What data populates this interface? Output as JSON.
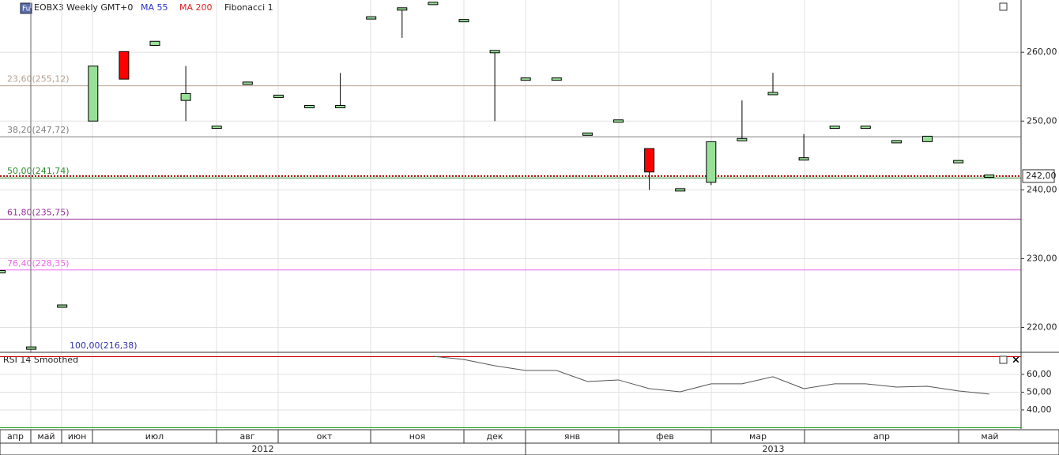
{
  "chart_data": {
    "type": "candlestick",
    "title": "EOBX3 Weekly GMT+0",
    "badge": "Fu",
    "indicators": [
      "MA 55",
      "MA 200",
      "Fibonacci 1"
    ],
    "open": [
      228.1,
      217,
      223.1,
      250,
      260.1,
      261,
      253,
      249.1,
      255.5,
      253.6,
      252.1,
      252.1,
      265,
      266.3,
      267.1,
      264.6,
      260.1,
      256.1,
      256.1,
      248.1,
      250,
      246,
      240,
      241.1,
      247.3,
      254,
      244.5,
      249.1,
      249.1,
      247,
      247,
      244.1,
      242
    ],
    "high": [
      228.1,
      217,
      223.1,
      258,
      260.1,
      261.6,
      258,
      249.1,
      255.5,
      253.6,
      252.1,
      257,
      265,
      266.3,
      267.1,
      264.6,
      260.1,
      256.1,
      256.1,
      248.1,
      250,
      246,
      240,
      247,
      253,
      257,
      248.1,
      249.1,
      249.1,
      247,
      247.8,
      244.1,
      242
    ],
    "low": [
      228.1,
      217,
      223.1,
      250,
      256.1,
      261,
      250,
      249.1,
      255.5,
      253.6,
      252.1,
      252.1,
      265,
      262.1,
      267.1,
      264.6,
      250,
      256.1,
      256.1,
      248.1,
      250,
      240,
      240,
      240.7,
      247.3,
      254,
      244.5,
      249.1,
      249.1,
      247,
      247,
      244.1,
      242
    ],
    "close": [
      228.1,
      217,
      223.1,
      258,
      256.1,
      261.6,
      254,
      249.1,
      255.5,
      253.6,
      252.1,
      252.1,
      265,
      266.3,
      267.1,
      264.6,
      260.1,
      256.1,
      256.1,
      248.1,
      250,
      242.6,
      240,
      247,
      247.3,
      254,
      244.5,
      249.1,
      249.1,
      247,
      247.8,
      244.1,
      242
    ],
    "up_color": "#98e098",
    "down_color": "#ff0000",
    "ylim": [
      216.5,
      267.6
    ],
    "yticks": [
      {
        "value": 220,
        "label": "220,00"
      },
      {
        "value": 230,
        "label": "230,00"
      },
      {
        "value": 240,
        "label": "240,00"
      },
      {
        "value": 250,
        "label": "250,00"
      },
      {
        "value": 260,
        "label": "260,00"
      }
    ],
    "last_price": {
      "value": 242,
      "label": "242,00"
    },
    "fib_levels": [
      {
        "label": "23,60(255,12)",
        "value": 255.12,
        "color": "#b8a090"
      },
      {
        "label": "38,20(247,72)",
        "value": 247.72,
        "color": "#808080"
      },
      {
        "label": "50,00(241,74)",
        "value": 241.74,
        "color": "#2e8b2e"
      },
      {
        "label": "61,80(235,75)",
        "value": 235.75,
        "color": "#993399"
      },
      {
        "label": "76,40(228,35)",
        "value": 228.35,
        "color": "#ee66ee"
      },
      {
        "label": "100,00(216,38)",
        "value": 216.38,
        "color": "#3333aa"
      }
    ],
    "rsi": {
      "name": "RSI 14 Smoothed",
      "color": "#555555",
      "values": [
        null,
        null,
        null,
        null,
        null,
        null,
        null,
        null,
        null,
        null,
        null,
        null,
        null,
        null,
        70.2,
        68.4,
        64.9,
        62.2,
        62.2,
        56,
        56.9,
        52,
        50.2,
        54.7,
        54.7,
        58.7,
        52,
        54.7,
        54.7,
        52.9,
        53.3,
        50.7,
        48.9
      ],
      "ylim": [
        29.3,
        72
      ],
      "yticks": [
        {
          "value": 40,
          "label": "40,00"
        },
        {
          "value": 50,
          "label": "50,00"
        },
        {
          "value": 60,
          "label": "60,00"
        }
      ],
      "levels": [
        {
          "value": 70,
          "color": "#cc0000"
        },
        {
          "value": 30,
          "color": "#009900"
        }
      ]
    },
    "months": [
      "апр",
      "май",
      "июн",
      "июл",
      "авг",
      "окт",
      "ноя",
      "дек",
      "янв",
      "фев",
      "мар",
      "апр",
      "май"
    ],
    "years": [
      "2012",
      "2013"
    ]
  }
}
